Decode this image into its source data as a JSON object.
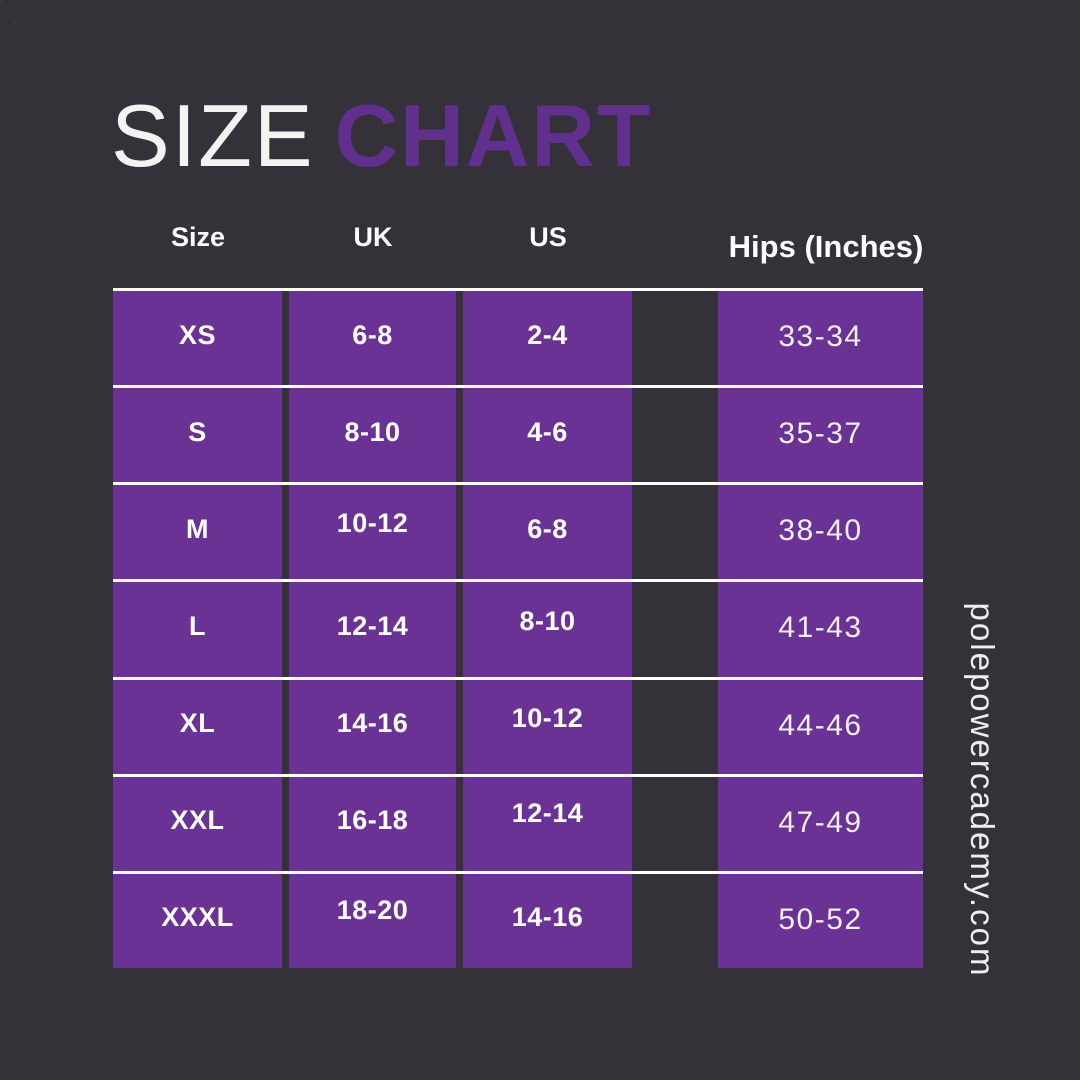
{
  "title": {
    "word1": "SIZE",
    "word2": "CHART"
  },
  "watermark": "polepowercademy.com",
  "colors": {
    "background": "#343238",
    "cell_purple": "#693294",
    "title_purple": "#61308f",
    "line_white": "#ffffff",
    "text_white": "#ffffff"
  },
  "chart_data": {
    "type": "table",
    "title": "SIZE CHART",
    "columns": [
      "Size",
      "UK",
      "US",
      "Hips (Inches)"
    ],
    "rows": [
      [
        "XS",
        "6-8",
        "2-4",
        "33-34"
      ],
      [
        "S",
        "8-10",
        "4-6",
        "35-37"
      ],
      [
        "M",
        "10-12",
        "6-8",
        "38-40"
      ],
      [
        "L",
        "12-14",
        "8-10",
        "41-43"
      ],
      [
        "XL",
        "14-16",
        "10-12",
        "44-46"
      ],
      [
        "XXL",
        "16-18",
        "12-14",
        "47-49"
      ],
      [
        "XXXL",
        "18-20",
        "14-16",
        "50-52"
      ]
    ],
    "layout_hints": {
      "grid": "purple cells separated by dark gutters, white horizontal rules between rows and above first row, no rule below last row",
      "legend": "none"
    }
  }
}
